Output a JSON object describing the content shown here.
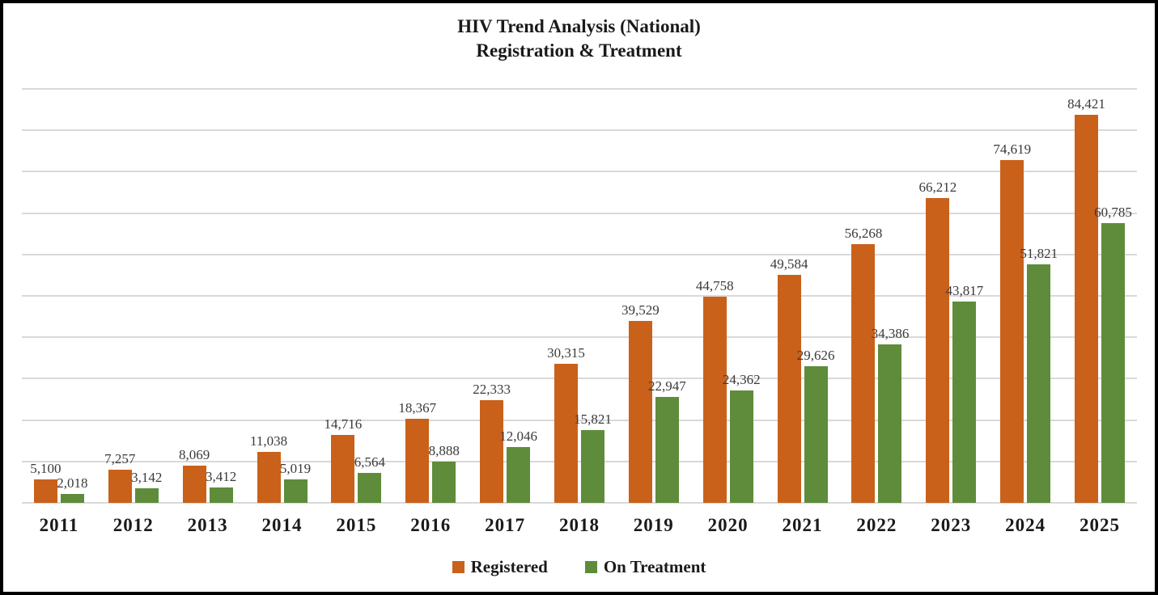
{
  "window": {
    "background": "#FFFFFF",
    "border_color": "#000000"
  },
  "chart_data": {
    "type": "bar",
    "title": "HIV Trend Analysis (National)",
    "subtitle": "Registration & Treatment",
    "categories": [
      "2011",
      "2012",
      "2013",
      "2014",
      "2015",
      "2016",
      "2017",
      "2018",
      "2019",
      "2020",
      "2021",
      "2022",
      "2023",
      "2024",
      "2025"
    ],
    "series": [
      {
        "name": "Registered",
        "color": "#C9611A",
        "values": [
          5100,
          7257,
          8069,
          11038,
          14716,
          18367,
          22333,
          30315,
          39529,
          44758,
          49584,
          56268,
          66212,
          74619,
          84421
        ]
      },
      {
        "name": "On Treatment",
        "color": "#5E8C3B",
        "values": [
          2018,
          3142,
          3412,
          5019,
          6564,
          8888,
          12046,
          15821,
          22947,
          24362,
          29626,
          34386,
          43817,
          51821,
          60785
        ]
      }
    ],
    "ylim": [
      0,
      90000
    ],
    "gridline_interval": 9000,
    "grid": true,
    "y_axis_labels_visible": false,
    "data_labels_visible": true,
    "value_label_format": "thousands-comma",
    "legend_position": "bottom",
    "gridline_color": "#D9D9D9",
    "label_color": "#3A3A3A",
    "text_color": "#1A1A1A"
  }
}
